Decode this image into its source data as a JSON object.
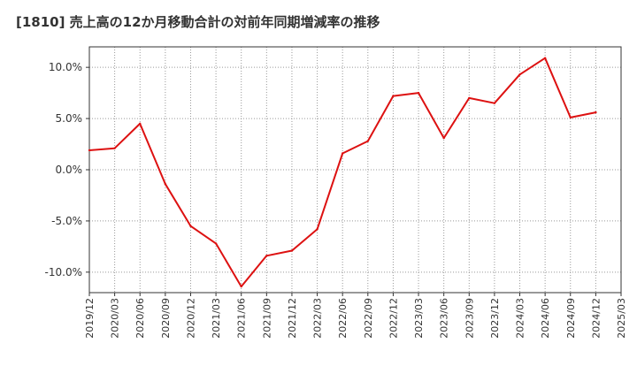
{
  "chart_data": {
    "type": "line",
    "title": "[1810]  売上高の12か月移動合計の対前年同期増減率の推移",
    "xlabel": "",
    "ylabel": "",
    "ylim": [
      -12,
      12
    ],
    "yticks": [
      -10,
      -5,
      0,
      5,
      10
    ],
    "ytick_labels": [
      "-10.0%",
      "-5.0%",
      "0.0%",
      "5.0%",
      "10.0%"
    ],
    "categories": [
      "2019/12",
      "2020/03",
      "2020/06",
      "2020/09",
      "2020/12",
      "2021/03",
      "2021/06",
      "2021/09",
      "2021/12",
      "2022/03",
      "2022/06",
      "2022/09",
      "2022/12",
      "2023/03",
      "2023/06",
      "2023/09",
      "2023/12",
      "2024/03",
      "2024/06",
      "2024/09",
      "2024/12",
      "2025/03"
    ],
    "series": [
      {
        "name": "対前年同期増減率",
        "color": "#dd1111",
        "values": [
          1.9,
          2.1,
          4.5,
          -1.4,
          -5.5,
          -7.2,
          -11.4,
          -8.4,
          -7.9,
          -5.8,
          1.6,
          2.8,
          7.2,
          7.5,
          3.1,
          7.0,
          6.5,
          9.3,
          10.9,
          5.1,
          5.6,
          null
        ]
      }
    ],
    "grid": true,
    "legend": "none"
  }
}
